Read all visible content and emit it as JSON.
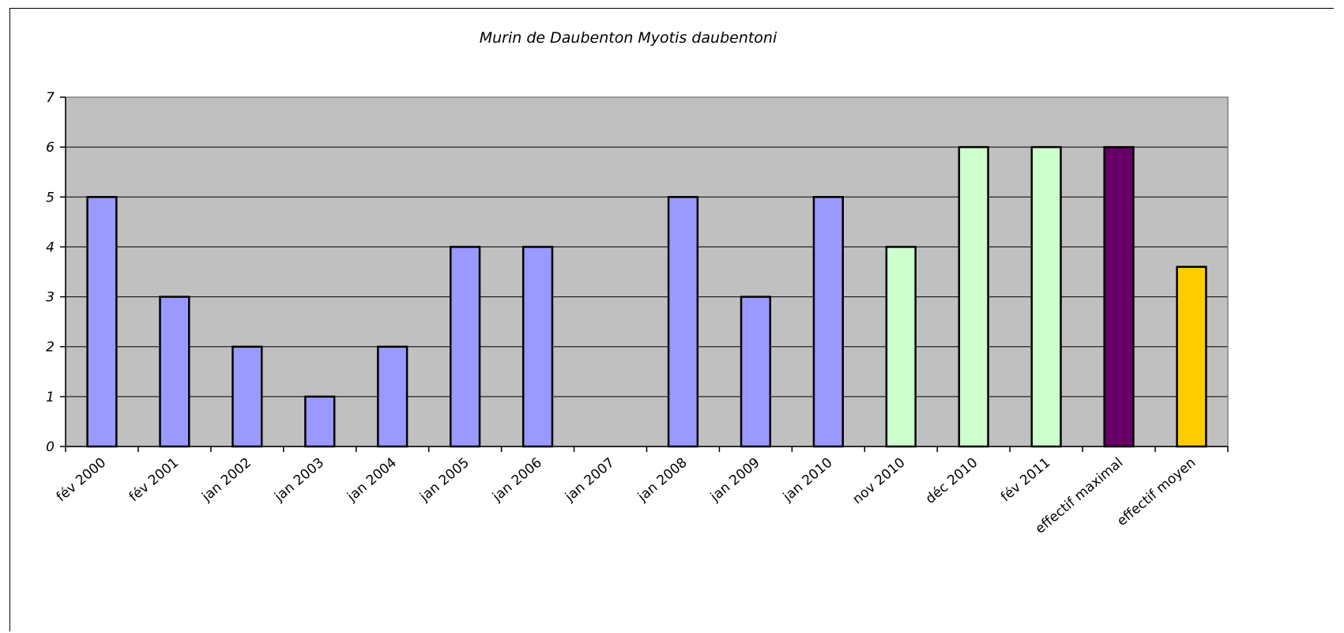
{
  "chart_data": {
    "type": "bar",
    "title": "Murin de Daubenton Myotis daubentoni",
    "xlabel": "",
    "ylabel": "",
    "ylim": [
      0,
      7
    ],
    "yticks": [
      0,
      1,
      2,
      3,
      4,
      5,
      6,
      7
    ],
    "grid": true,
    "legend": "none",
    "categories": [
      "fév 2000",
      "fév 2001",
      "jan 2002",
      "jan 2003",
      "jan 2004",
      "jan 2005",
      "jan 2006",
      "jan 2007",
      "jan 2008",
      "jan 2009",
      "jan 2010",
      "nov 2010",
      "déc 2010",
      "fév 2011",
      "effectif maximal",
      "effectif moyen"
    ],
    "values": [
      5,
      3,
      2,
      1,
      2,
      4,
      4,
      0,
      5,
      3,
      5,
      4,
      6,
      6,
      6,
      3.6
    ],
    "bar_colors": [
      "#9999ff",
      "#9999ff",
      "#9999ff",
      "#9999ff",
      "#9999ff",
      "#9999ff",
      "#9999ff",
      "#9999ff",
      "#9999ff",
      "#9999ff",
      "#9999ff",
      "#ccffcc",
      "#ccffcc",
      "#ccffcc",
      "#660066",
      "#ffcc00"
    ],
    "plot_background": "#c0c0c0",
    "gridline_color": "#000000"
  }
}
